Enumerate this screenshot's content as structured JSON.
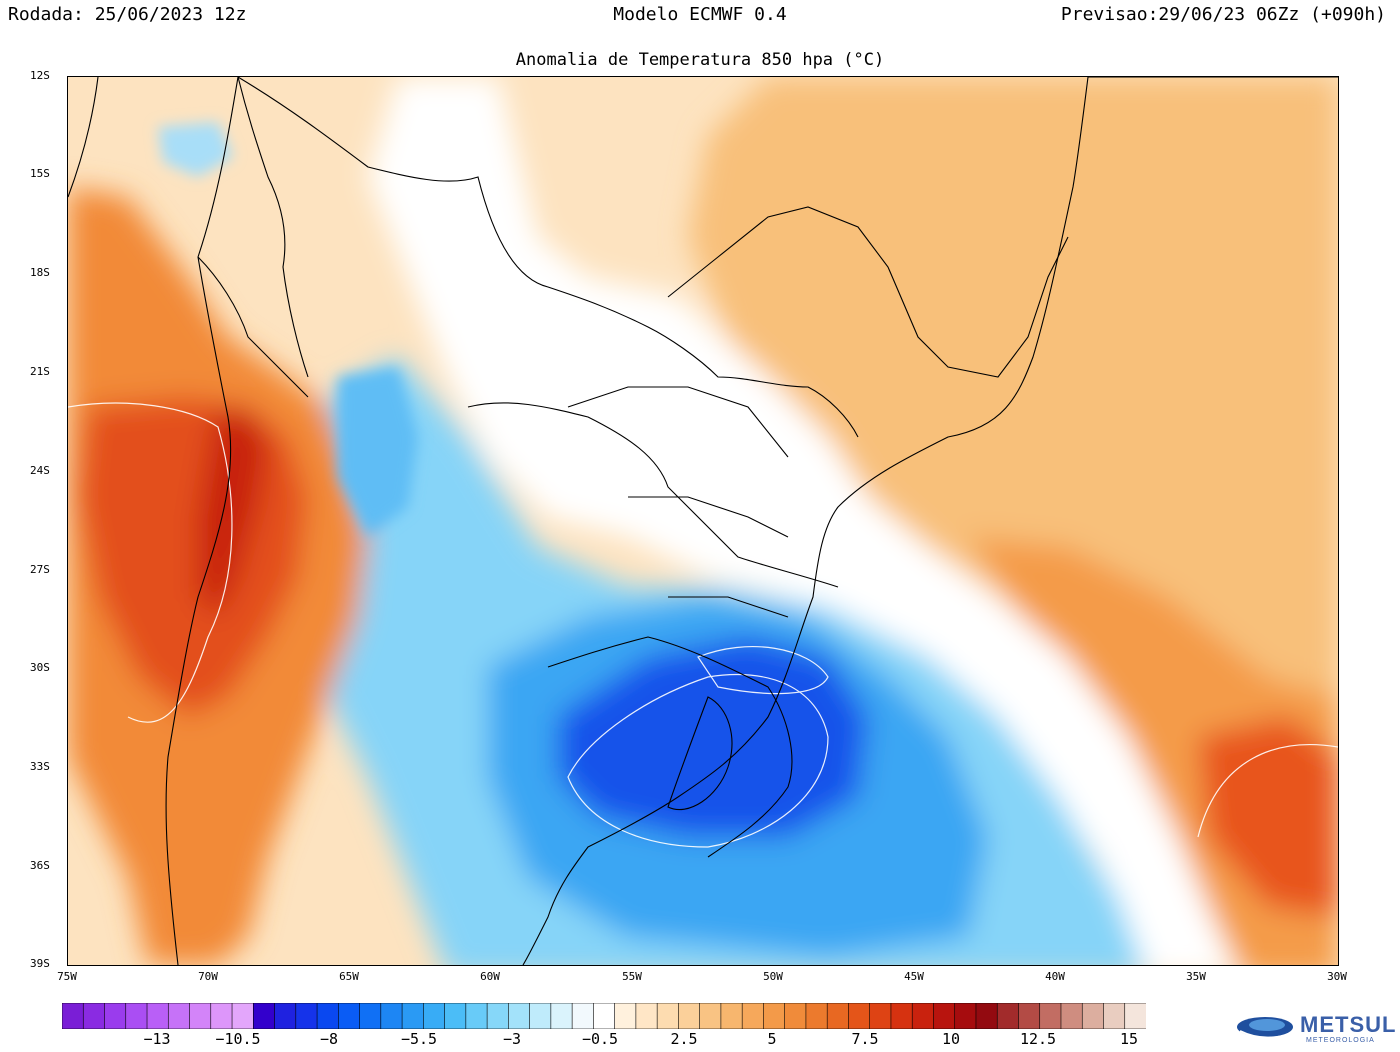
{
  "header": {
    "left": "Rodada: 25/06/2023 12z",
    "center": "Modelo ECMWF 0.4",
    "right": "Previsao:29/06/23 06Zz (+090h)"
  },
  "map": {
    "title": "Anomalia de Temperatura 850 hpa (°C)",
    "lat_labels": [
      "12S",
      "15S",
      "18S",
      "21S",
      "24S",
      "27S",
      "30S",
      "33S",
      "36S",
      "39S"
    ],
    "lon_labels": [
      "75W",
      "70W",
      "65W",
      "60W",
      "55W",
      "50W",
      "45W",
      "40W",
      "35W",
      "30W"
    ],
    "anomaly_fields": [
      {
        "region": "Andes / central Chile-Argentina",
        "sign": "warm",
        "max_anomaly_c": 10
      },
      {
        "region": "Atlantic ocean east of Brazil",
        "sign": "warm",
        "max_anomaly_c": 10
      },
      {
        "region": "Rio Grande do Sul / Uruguay / adjacent Atlantic",
        "sign": "cold",
        "min_anomaly_c": -8
      },
      {
        "region": "Central Brazil / Minas Gerais",
        "sign": "warm",
        "max_anomaly_c": 3
      },
      {
        "region": "Paraguay / Mato Grosso do Sul",
        "sign": "near-neutral",
        "max_anomaly_c": 0.5
      }
    ]
  },
  "colorbar": {
    "labels": [
      "−13",
      "−10.5",
      "−8",
      "−5.5",
      "−3",
      "−0.5",
      "2.5",
      "5",
      "7.5",
      "10",
      "12.5",
      "15"
    ],
    "colors": [
      "#7a1ed6",
      "#8a2be2",
      "#9a3ced",
      "#aa4ef3",
      "#b95ff7",
      "#c672f8",
      "#d384f9",
      "#dd96fa",
      "#e3a6fb",
      "#3300cc",
      "#1f22e0",
      "#1533ea",
      "#0a48f0",
      "#0a5cf5",
      "#1070f5",
      "#1d86f4",
      "#2a9af4",
      "#38acf6",
      "#4bbdf7",
      "#68cbf8",
      "#86d7f9",
      "#a3e2fa",
      "#bfebfb",
      "#daf3fc",
      "#f2f9fd",
      "#ffffff",
      "#fff1dd",
      "#ffe6c6",
      "#fddcb0",
      "#fbd09a",
      "#f9c383",
      "#f7b66e",
      "#f6a85b",
      "#f39a49",
      "#f08b3a",
      "#ec7a2d",
      "#e86822",
      "#e45519",
      "#de4314",
      "#d63210",
      "#c9220e",
      "#b8140e",
      "#a60c0e",
      "#930a10",
      "#a22b2b",
      "#b34b45",
      "#c26d63",
      "#cf8d80",
      "#dcae9f",
      "#e9cdc0",
      "#f4e5dc"
    ]
  },
  "logo": {
    "name": "METSUL",
    "subtitle": "METEOROLOGIA"
  }
}
